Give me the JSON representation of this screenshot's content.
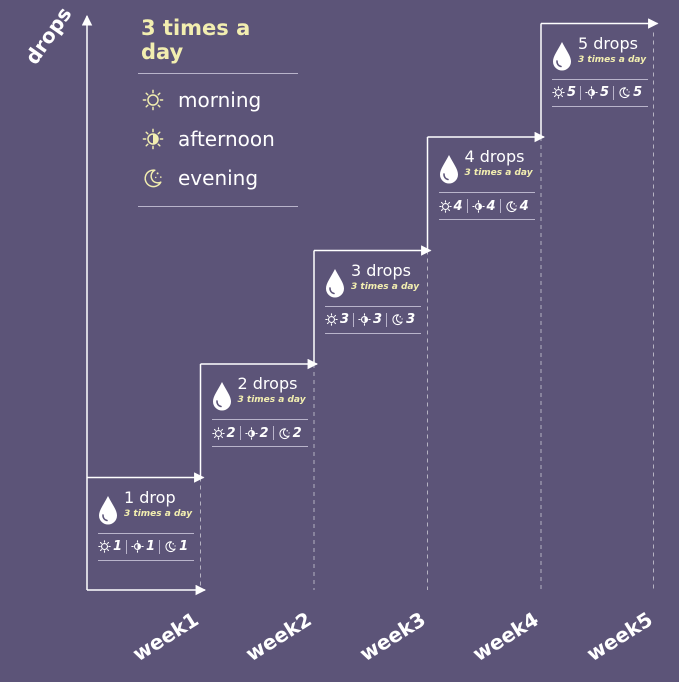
{
  "legend": {
    "title": "3 times a day",
    "items": [
      {
        "icon": "sun-icon",
        "label": "morning"
      },
      {
        "icon": "half-sun-icon",
        "label": "afternoon"
      },
      {
        "icon": "moon-stars-icon",
        "label": "evening"
      }
    ]
  },
  "axes": {
    "ylabel": "drops"
  },
  "frequency_label": "3 times a day",
  "colors": {
    "background": "#5c5478",
    "accent": "#f2eeb0",
    "lines": "#ffffff"
  },
  "chart_data": {
    "type": "step",
    "categories": [
      "week1",
      "week2",
      "week3",
      "week4",
      "week5"
    ],
    "values": [
      1,
      2,
      3,
      4,
      5
    ],
    "ylabel": "drops",
    "step_labels": [
      "1 drop",
      "2 drops",
      "3 drops",
      "4 drops",
      "5 drops"
    ],
    "doses": [
      {
        "morning": "1",
        "afternoon": "1",
        "evening": "1"
      },
      {
        "morning": "2",
        "afternoon": "2",
        "evening": "2"
      },
      {
        "morning": "3",
        "afternoon": "3",
        "evening": "3"
      },
      {
        "morning": "4",
        "afternoon": "4",
        "evening": "4"
      },
      {
        "morning": "5",
        "afternoon": "5",
        "evening": "5"
      }
    ]
  }
}
